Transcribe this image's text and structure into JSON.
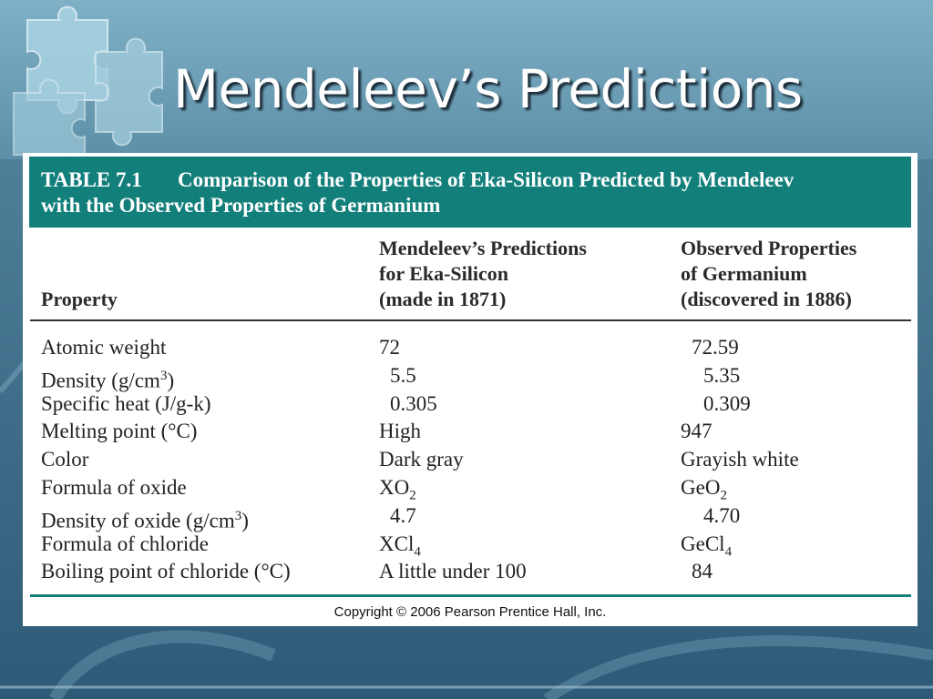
{
  "slide": {
    "title": "Mendeleev’s Predictions",
    "copyright": "Copyright © 2006 Pearson Prentice Hall, Inc."
  },
  "table": {
    "number": "TABLE 7.1",
    "caption_line1": "Comparison of the Properties of Eka-Silicon Predicted by Mendeleev",
    "caption_line2": "with the Observed Properties of Germanium",
    "headers": {
      "property": "Property",
      "predicted_1": "Mendeleev’s Predictions",
      "predicted_2": "for Eka-Silicon",
      "predicted_3": "(made in 1871)",
      "observed_1": "Observed Properties",
      "observed_2": "of Germanium",
      "observed_3": "(discovered in 1886)"
    },
    "rows": [
      {
        "property": "Atomic weight",
        "predicted": "72",
        "observed": "72.59"
      },
      {
        "property": "Density (g/cm",
        "property_sup": "3",
        "property_tail": ")",
        "predicted": "5.5",
        "observed": "5.35"
      },
      {
        "property": "Specific heat (J/g-k)",
        "predicted": "0.305",
        "observed": "0.309"
      },
      {
        "property": "Melting point (°C)",
        "predicted": "High",
        "observed": "947"
      },
      {
        "property": "Color",
        "predicted": "Dark gray",
        "observed": "Grayish white"
      },
      {
        "property": "Formula of oxide",
        "predicted": "XO",
        "predicted_sub": "2",
        "observed": "GeO",
        "observed_sub": "2"
      },
      {
        "property": "Density of oxide (g/cm",
        "property_sup": "3",
        "property_tail": ")",
        "predicted": "4.7",
        "observed": "4.70"
      },
      {
        "property": "Formula of chloride",
        "predicted": "XCl",
        "predicted_sub": "4",
        "observed": "GeCl",
        "observed_sub": "4"
      },
      {
        "property": "Boiling point of chloride (°C)",
        "predicted": "A little under 100",
        "observed": "84"
      }
    ]
  }
}
